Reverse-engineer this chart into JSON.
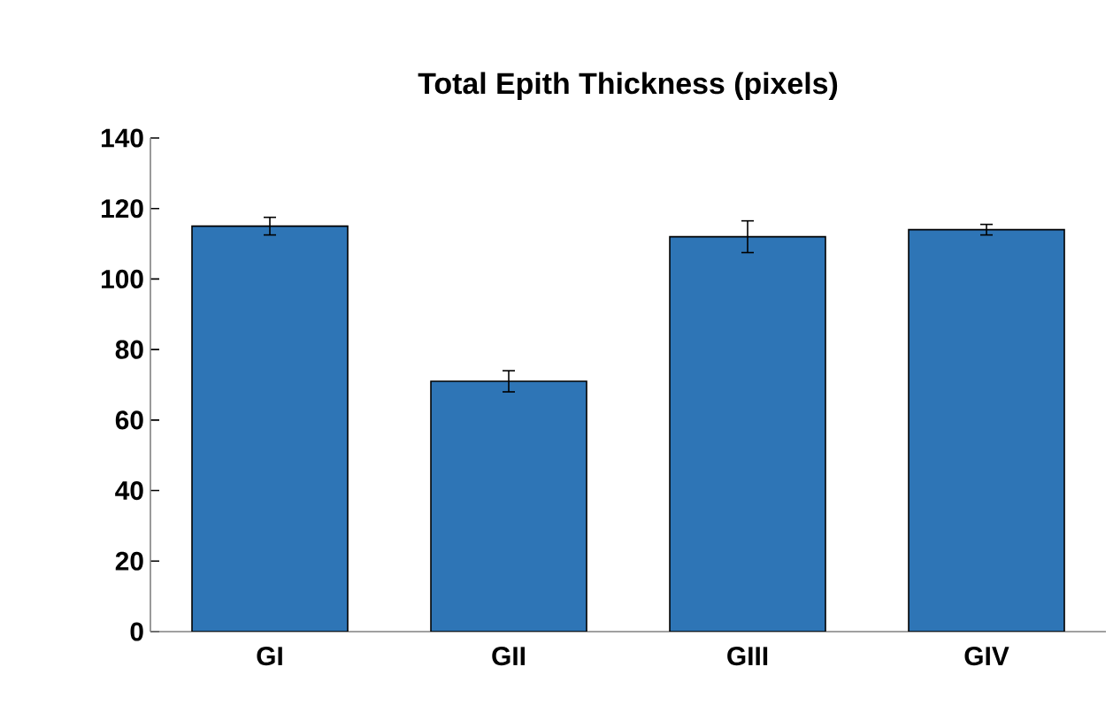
{
  "chart_data": {
    "type": "bar",
    "title": "Total Epith Thickness (pixels)",
    "categories": [
      "GI",
      "GII",
      "GIII",
      "GIV"
    ],
    "values": [
      115,
      71,
      112,
      114
    ],
    "errors": [
      2.5,
      3,
      4.5,
      1.5
    ],
    "color": "#2e75b6",
    "ylim": [
      0,
      140
    ],
    "yticks": [
      0,
      20,
      40,
      60,
      80,
      100,
      120,
      140
    ],
    "grid": false
  }
}
